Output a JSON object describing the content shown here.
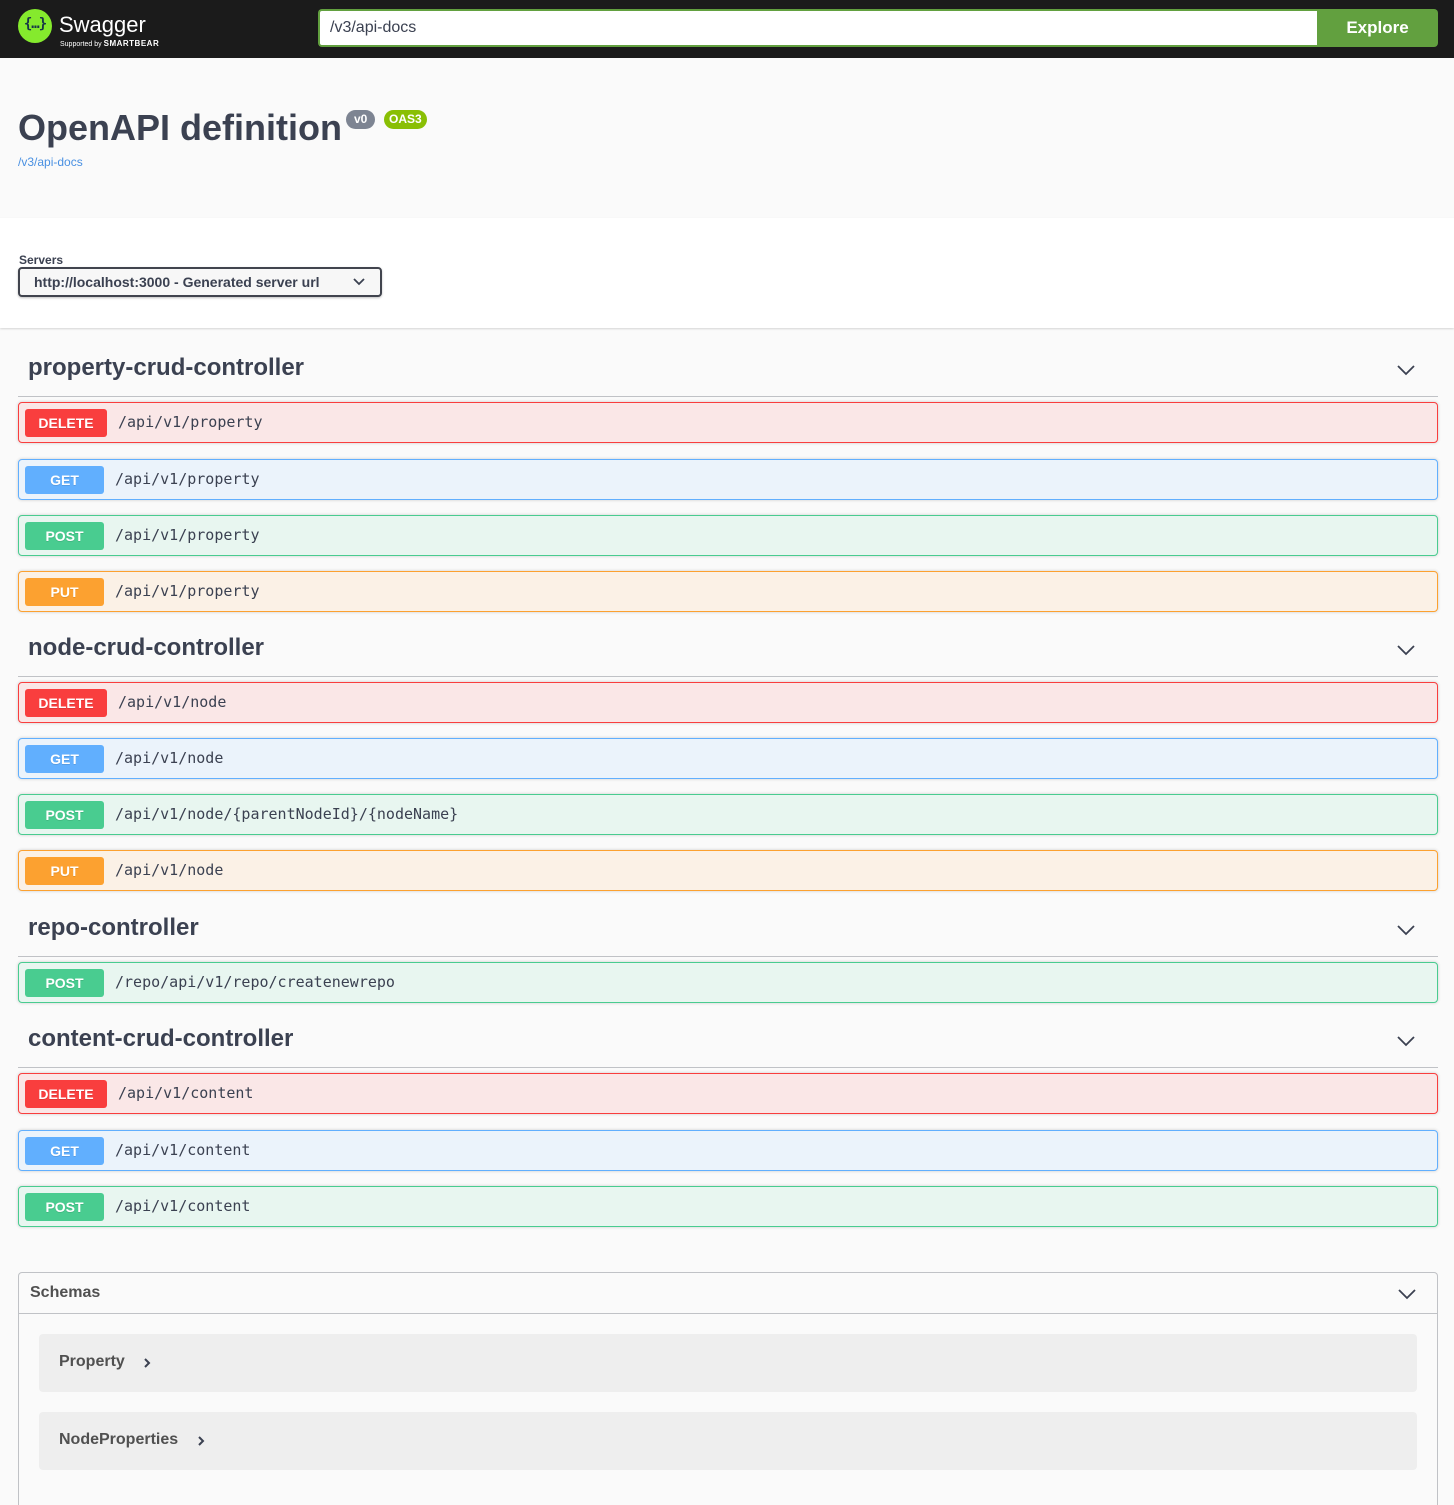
{
  "topbar": {
    "brand_name": "Swagger",
    "brand_glyph": "{…}",
    "brand_sub_prefix": "Supported by",
    "brand_sub_company": "SMARTBEAR",
    "url_value": "/v3/api-docs",
    "explore_label": "Explore"
  },
  "info": {
    "title": "OpenAPI definition",
    "version_badge": "v0",
    "oas_badge": "OAS3",
    "spec_link": "/v3/api-docs"
  },
  "servers": {
    "label": "Servers",
    "selected": "http://localhost:3000 - Generated server url"
  },
  "tags": [
    {
      "name": "property-crud-controller",
      "operations": [
        {
          "method": "DELETE",
          "path": "/api/v1/property"
        },
        {
          "method": "GET",
          "path": "/api/v1/property"
        },
        {
          "method": "POST",
          "path": "/api/v1/property"
        },
        {
          "method": "PUT",
          "path": "/api/v1/property"
        }
      ]
    },
    {
      "name": "node-crud-controller",
      "operations": [
        {
          "method": "DELETE",
          "path": "/api/v1/node"
        },
        {
          "method": "GET",
          "path": "/api/v1/node"
        },
        {
          "method": "POST",
          "path": "/api/v1/node/{parentNodeId}/{nodeName}"
        },
        {
          "method": "PUT",
          "path": "/api/v1/node"
        }
      ]
    },
    {
      "name": "repo-controller",
      "operations": [
        {
          "method": "POST",
          "path": "/repo/api/v1/repo/createnewrepo"
        }
      ]
    },
    {
      "name": "content-crud-controller",
      "operations": [
        {
          "method": "DELETE",
          "path": "/api/v1/content"
        },
        {
          "method": "GET",
          "path": "/api/v1/content"
        },
        {
          "method": "POST",
          "path": "/api/v1/content"
        }
      ]
    }
  ],
  "schemas": {
    "title": "Schemas",
    "models": [
      "Property",
      "NodeProperties"
    ]
  },
  "colors": {
    "delete": "#f93e3e",
    "get": "#61affe",
    "post": "#49cc90",
    "put": "#fca130",
    "explore": "#62a03f",
    "oas_badge": "#89bf04",
    "version_badge": "#7d8492"
  },
  "icons": {
    "tag_toggle": "chevron-down-icon",
    "model_expand": "chevron-right-icon",
    "server_select": "chevron-down-icon"
  }
}
